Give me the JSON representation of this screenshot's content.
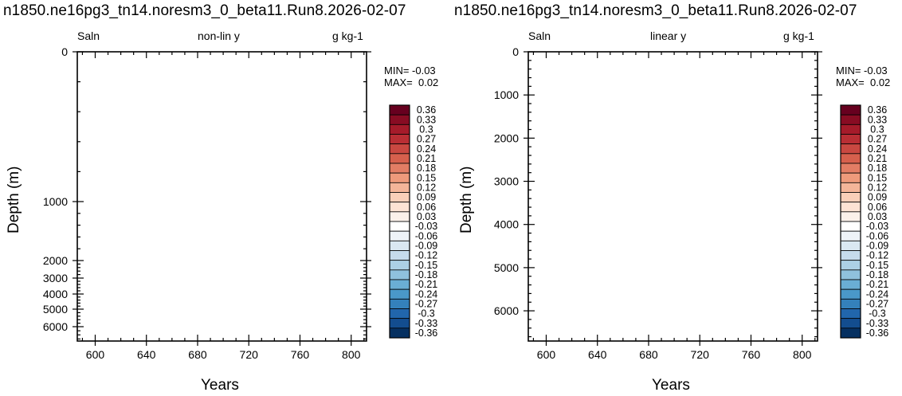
{
  "chart_data": [
    {
      "type": "heatmap",
      "title": "n1850.ne16pg3_tn14.noresm3_0_beta11.Run8.2026-02-07",
      "left_label": "Saln",
      "center_label": "non-lin y",
      "right_label": "g kg-1",
      "xlabel": "Years",
      "ylabel": "Depth (m)",
      "xlim": [
        586,
        812
      ],
      "ylim": [
        0,
        6700
      ],
      "y_scale": "non-linear (depth-stretched)",
      "y_reversed": true,
      "x_ticks": [
        600,
        640,
        680,
        720,
        760,
        800
      ],
      "y_ticks": [
        0,
        1000,
        2000,
        3000,
        4000,
        5000,
        6000
      ],
      "min_text": "MIN= -0.03",
      "max_text": "MAX=  0.02",
      "colorbar_levels": [
        "0.36",
        "0.33",
        "0.3",
        "0.27",
        "0.24",
        "0.21",
        "0.18",
        "0.15",
        "0.12",
        "0.09",
        "0.06",
        "0.03",
        "-0.03",
        "-0.06",
        "-0.09",
        "-0.12",
        "-0.15",
        "-0.18",
        "-0.21",
        "-0.24",
        "-0.27",
        "-0.3",
        "-0.33",
        "-0.36"
      ],
      "colorbar_colors": [
        "#67001f",
        "#880c23",
        "#a51b2a",
        "#b92e34",
        "#c94841",
        "#d6604d",
        "#e27d64",
        "#ee9a7b",
        "#f4b599",
        "#f9cfb9",
        "#fde3d4",
        "#fbf1ea",
        "#ffffff",
        "#eef3f8",
        "#dae8f2",
        "#c6dbec",
        "#acd0e5",
        "#8fc1dd",
        "#6aaed4",
        "#4a98c9",
        "#3481bb",
        "#2166ac",
        "#134d8f",
        "#053061"
      ],
      "grid": false
    },
    {
      "type": "heatmap",
      "title": "n1850.ne16pg3_tn14.noresm3_0_beta11.Run8.2026-02-07",
      "left_label": "Saln",
      "center_label": "linear y",
      "right_label": "g kg-1",
      "xlabel": "Years",
      "ylabel": "Depth (m)",
      "xlim": [
        586,
        812
      ],
      "ylim": [
        0,
        6700
      ],
      "y_scale": "linear",
      "y_reversed": true,
      "x_ticks": [
        600,
        640,
        680,
        720,
        760,
        800
      ],
      "y_ticks": [
        0,
        1000,
        2000,
        3000,
        4000,
        5000,
        6000
      ],
      "min_text": "MIN= -0.03",
      "max_text": "MAX=  0.02",
      "colorbar_levels": [
        "0.36",
        "0.33",
        "0.3",
        "0.27",
        "0.24",
        "0.21",
        "0.18",
        "0.15",
        "0.12",
        "0.09",
        "0.06",
        "0.03",
        "-0.03",
        "-0.06",
        "-0.09",
        "-0.12",
        "-0.15",
        "-0.18",
        "-0.21",
        "-0.24",
        "-0.27",
        "-0.3",
        "-0.33",
        "-0.36"
      ],
      "colorbar_colors": [
        "#67001f",
        "#880c23",
        "#a51b2a",
        "#b92e34",
        "#c94841",
        "#d6604d",
        "#e27d64",
        "#ee9a7b",
        "#f4b599",
        "#f9cfb9",
        "#fde3d4",
        "#fbf1ea",
        "#ffffff",
        "#eef3f8",
        "#dae8f2",
        "#c6dbec",
        "#acd0e5",
        "#8fc1dd",
        "#6aaed4",
        "#4a98c9",
        "#3481bb",
        "#2166ac",
        "#134d8f",
        "#053061"
      ],
      "grid": false
    }
  ]
}
